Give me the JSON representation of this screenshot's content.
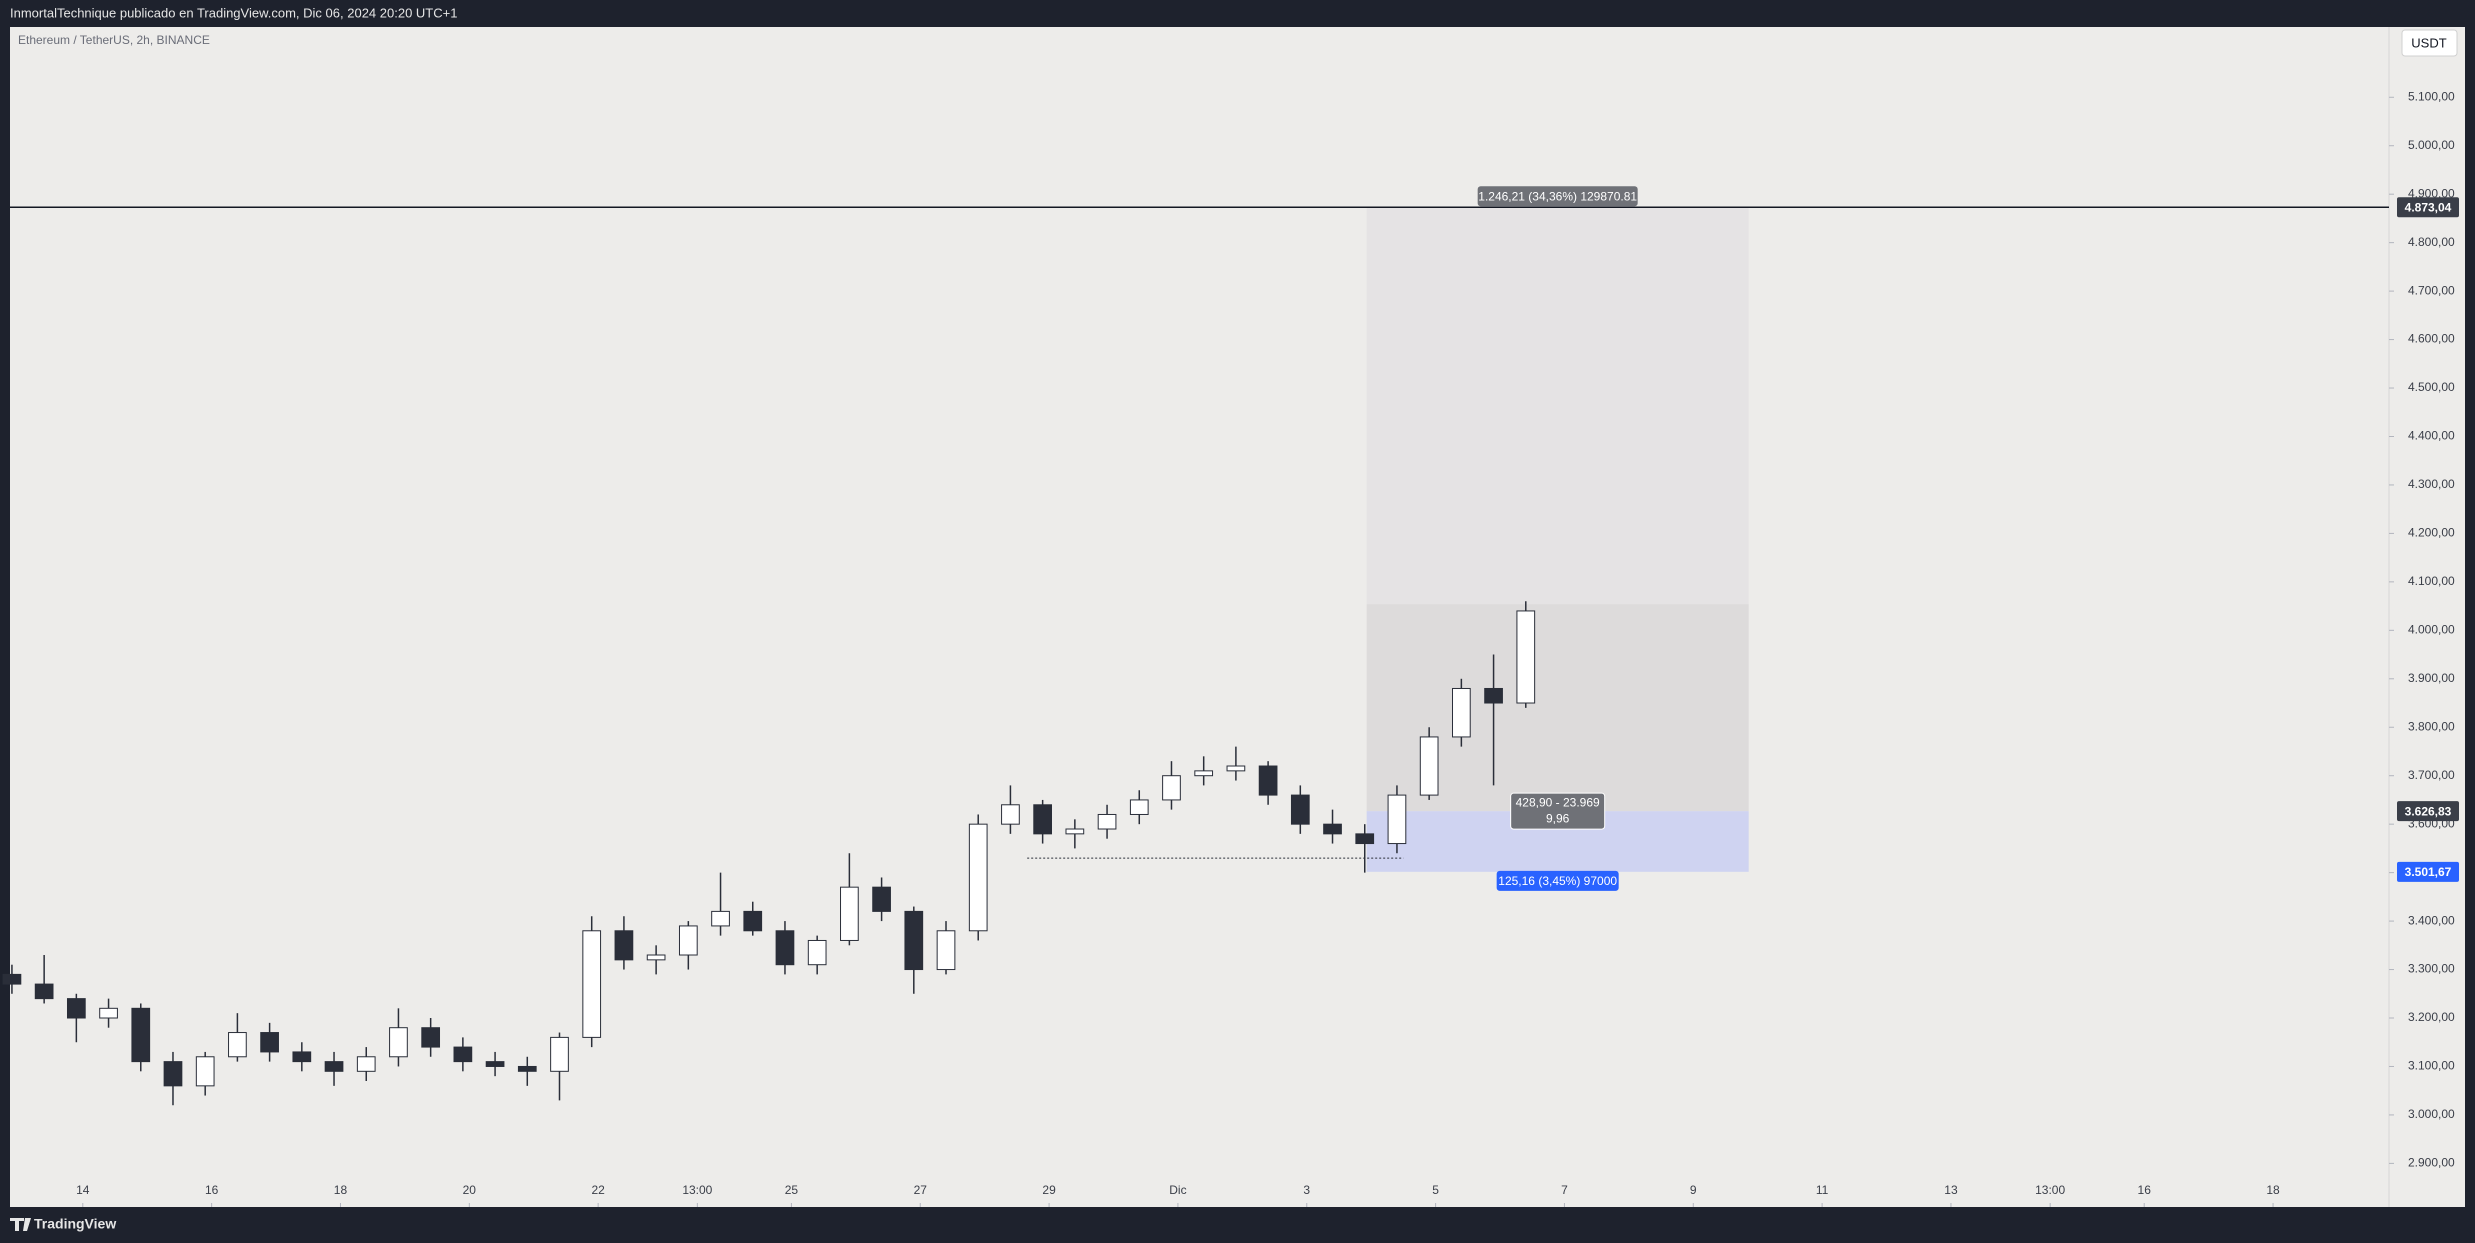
{
  "header": {
    "publisher": "InmortalTechnique publicado en TradingView.com, Dic 06, 2024 20:20 UTC+1",
    "footer": "TradingView"
  },
  "chart_data": {
    "type": "candlestick",
    "title": "Ethereum / TetherUS, 2h, BINANCE",
    "currency": "USDT",
    "x": [
      12.9,
      13.4,
      13.9,
      14.4,
      14.9,
      15.4,
      15.9,
      16.4,
      16.9,
      17.4,
      17.9,
      18.4,
      18.9,
      19.4,
      19.9,
      20.4,
      20.9,
      21.4,
      21.9,
      22.4,
      22.9,
      23.4,
      23.9,
      24.4,
      24.9,
      25.4,
      25.9,
      26.4,
      26.9,
      27.4,
      27.9,
      28.4,
      28.9,
      29.4,
      29.9,
      30.4,
      30.9,
      31.4,
      31.9,
      32.4,
      32.9,
      33.4,
      33.9,
      34.4,
      34.9,
      35.4,
      35.9,
      36.4
    ],
    "open": [
      3290,
      3270,
      3240,
      3200,
      3220,
      3110,
      3060,
      3120,
      3170,
      3130,
      3110,
      3090,
      3120,
      3180,
      3140,
      3110,
      3100,
      3090,
      3160,
      3380,
      3320,
      3330,
      3390,
      3420,
      3380,
      3310,
      3360,
      3470,
      3420,
      3300,
      3380,
      3600,
      3640,
      3580,
      3590,
      3620,
      3650,
      3700,
      3710,
      3720,
      3660,
      3600,
      3580,
      3560,
      3660,
      3780,
      3880,
      3850
    ],
    "high": [
      3310,
      3330,
      3250,
      3240,
      3230,
      3130,
      3130,
      3210,
      3190,
      3150,
      3130,
      3140,
      3220,
      3200,
      3160,
      3130,
      3120,
      3170,
      3410,
      3410,
      3350,
      3400,
      3500,
      3440,
      3400,
      3370,
      3540,
      3490,
      3430,
      3400,
      3620,
      3680,
      3650,
      3610,
      3640,
      3670,
      3730,
      3740,
      3760,
      3730,
      3680,
      3630,
      3600,
      3680,
      3800,
      3900,
      3950,
      4060
    ],
    "low": [
      3250,
      3230,
      3150,
      3180,
      3090,
      3020,
      3040,
      3110,
      3110,
      3090,
      3060,
      3070,
      3100,
      3120,
      3090,
      3080,
      3060,
      3030,
      3140,
      3300,
      3290,
      3300,
      3370,
      3370,
      3290,
      3290,
      3350,
      3400,
      3250,
      3290,
      3360,
      3580,
      3560,
      3550,
      3570,
      3600,
      3630,
      3680,
      3690,
      3640,
      3580,
      3560,
      3500,
      3540,
      3650,
      3760,
      3680,
      3840
    ],
    "close": [
      3270,
      3240,
      3200,
      3220,
      3110,
      3060,
      3120,
      3170,
      3130,
      3110,
      3090,
      3120,
      3180,
      3140,
      3110,
      3100,
      3090,
      3160,
      3380,
      3320,
      3330,
      3390,
      3420,
      3380,
      3310,
      3360,
      3470,
      3420,
      3300,
      3380,
      3600,
      3640,
      3580,
      3590,
      3620,
      3650,
      3700,
      3710,
      3720,
      3660,
      3600,
      3580,
      3560,
      3660,
      3780,
      3880,
      3850,
      4040
    ],
    "up_color": "#ffffff",
    "down_color": "#2a2e39",
    "edge_color": "#2a2e39",
    "xlim": [
      12.87,
      49.8
    ],
    "ylim": [
      2810,
      5245
    ],
    "xticks": [
      14,
      16,
      18,
      20,
      22,
      {
        "value": 23.54,
        "label": "13:00"
      },
      25,
      27,
      29,
      {
        "value": 31,
        "label": "Dic"
      },
      {
        "value": 33,
        "label": "3"
      },
      {
        "value": 35,
        "label": "5"
      },
      {
        "value": 37,
        "label": "7"
      },
      {
        "value": 39,
        "label": "9"
      },
      {
        "value": 41,
        "label": "11"
      },
      {
        "value": 43,
        "label": "13"
      },
      {
        "value": 44.54,
        "label": "13:00"
      },
      {
        "value": 46,
        "label": "16"
      },
      {
        "value": 48,
        "label": "18"
      }
    ],
    "yticks": [
      {
        "value": 2900,
        "label": "2.900,00"
      },
      {
        "value": 3000,
        "label": "3.000,00"
      },
      {
        "value": 3100,
        "label": "3.100,00"
      },
      {
        "value": 3200,
        "label": "3.200,00"
      },
      {
        "value": 3300,
        "label": "3.300,00"
      },
      {
        "value": 3400,
        "label": "3.400,00"
      },
      {
        "value": 3500,
        "label": "3.500,00"
      },
      {
        "value": 3600,
        "label": "3.600,00"
      },
      {
        "value": 3700,
        "label": "3.700,00"
      },
      {
        "value": 3800,
        "label": "3.800,00"
      },
      {
        "value": 3900,
        "label": "3.900,00"
      },
      {
        "value": 4000,
        "label": "4.000,00"
      },
      {
        "value": 4100,
        "label": "4.100,00"
      },
      {
        "value": 4200,
        "label": "4.200,00"
      },
      {
        "value": 4300,
        "label": "4.300,00"
      },
      {
        "value": 4400,
        "label": "4.400,00"
      },
      {
        "value": 4500,
        "label": "4.500,00"
      },
      {
        "value": 4600,
        "label": "4.600,00"
      },
      {
        "value": 4700,
        "label": "4.700,00"
      },
      {
        "value": 4800,
        "label": "4.800,00"
      },
      {
        "value": 4900,
        "label": "4.900,00"
      },
      {
        "value": 5000,
        "label": "5.000,00"
      },
      {
        "value": 5100,
        "label": "5.100,00"
      }
    ],
    "price_labels": [
      {
        "value": 4873.04,
        "label": "4.873,04",
        "color": "#3a3e48"
      },
      {
        "value": 3626.83,
        "label": "3.626,83",
        "color": "#3a3e48"
      },
      {
        "value": 3501.67,
        "label": "3.501,67",
        "color": "#2962ff"
      }
    ],
    "dotted_line": {
      "value": 3530,
      "x": [
        28.66,
        34.5
      ]
    },
    "position": {
      "x": [
        33.93,
        39.86
      ],
      "target": 4873.04,
      "progress": 4054,
      "entry": 3626.83,
      "stop": 3501.67,
      "target_label": "1.246,21 (34,36%) 129870.81",
      "stop_label": "125,16 (3,45%) 97000",
      "center_label": [
        "428,90 - 23.969",
        "9,96"
      ]
    }
  }
}
